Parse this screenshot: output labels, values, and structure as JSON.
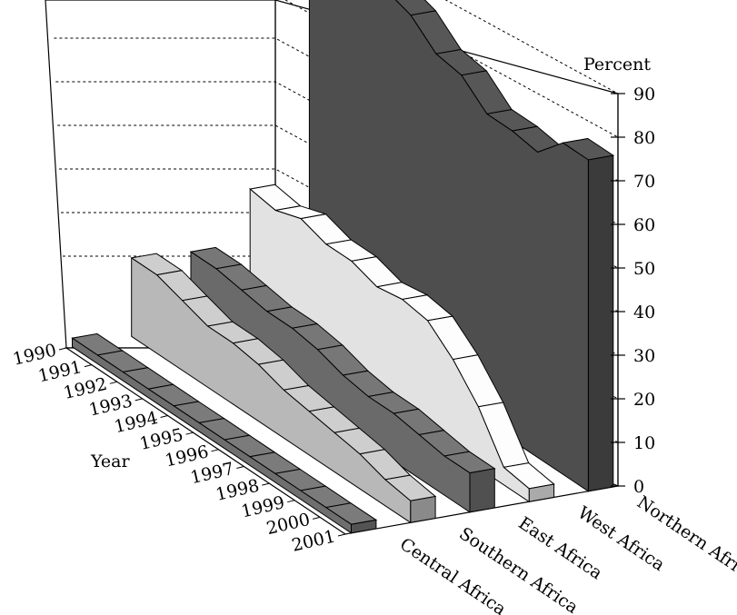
{
  "chart_data": {
    "type": "area",
    "title": "",
    "zlabel": "Percent",
    "ylabel": "Year",
    "zlim": [
      0,
      90
    ],
    "z_ticks": [
      "0",
      "10",
      "20",
      "30",
      "40",
      "50",
      "60",
      "70",
      "80",
      "90"
    ],
    "years": [
      "1990",
      "1991",
      "1992",
      "1993",
      "1994",
      "1995",
      "1996",
      "1997",
      "1998",
      "1999",
      "2000",
      "2001"
    ],
    "grid": true,
    "series": [
      {
        "name": "Central Africa",
        "color": "#6e6e6e",
        "values": [
          2,
          2,
          2,
          2,
          2,
          2,
          2,
          2,
          2,
          2,
          2,
          2
        ]
      },
      {
        "name": "Southern Africa",
        "color": "#b8b8b8",
        "values": [
          18,
          18,
          16,
          14,
          14,
          13,
          11,
          10,
          9,
          8,
          6,
          5
        ]
      },
      {
        "name": "East Africa",
        "color": "#6a6a6a",
        "values": [
          17,
          17,
          16,
          15,
          15,
          14,
          12,
          11,
          11,
          10,
          9,
          9
        ]
      },
      {
        "name": "West Africa",
        "color": "#e2e2e2",
        "values": [
          29,
          28,
          30,
          28,
          28,
          26,
          27,
          26,
          21,
          14,
          4,
          3
        ]
      },
      {
        "name": "Northern Africa",
        "color": "#4e4e4e",
        "values": [
          90,
          89,
          89,
          84,
          82,
          77,
          76,
          71,
          71,
          70,
          76,
          76
        ]
      }
    ]
  }
}
